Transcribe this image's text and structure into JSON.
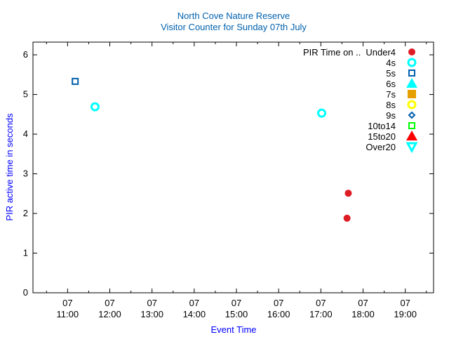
{
  "chart_data": {
    "type": "scatter",
    "title": "North Cove Nature Reserve",
    "subtitle": "Visitor Counter for Sunday 07th July",
    "xlabel": "Event Time",
    "ylabel": "PIR active time in seconds",
    "xlim_hours": [
      10.18,
      19.67
    ],
    "ylim": [
      0,
      6.32
    ],
    "yticks": [
      "0",
      "1",
      "2",
      "3",
      "4",
      "5",
      "6"
    ],
    "xticks": [
      {
        "h": 11,
        "day": "07",
        "time": "11:00"
      },
      {
        "h": 12,
        "day": "07",
        "time": "12:00"
      },
      {
        "h": 13,
        "day": "07",
        "time": "13:00"
      },
      {
        "h": 14,
        "day": "07",
        "time": "14:00"
      },
      {
        "h": 15,
        "day": "07",
        "time": "15:00"
      },
      {
        "h": 16,
        "day": "07",
        "time": "16:00"
      },
      {
        "h": 17,
        "day": "07",
        "time": "17:00"
      },
      {
        "h": 18,
        "day": "07",
        "time": "18:00"
      },
      {
        "h": 19,
        "day": "07",
        "time": "19:00"
      }
    ],
    "legend_title": "PIR Time on ..",
    "legend_position": "top-right",
    "series": [
      {
        "name": "Under4",
        "marker": "filled-circle",
        "color": "#dd1c24",
        "points": [
          [
            17.65,
            2.51
          ],
          [
            17.62,
            1.88
          ]
        ]
      },
      {
        "name": "4s",
        "marker": "circle",
        "color": "#00ffff",
        "points": [
          [
            11.65,
            4.69
          ],
          [
            17.02,
            4.53
          ]
        ]
      },
      {
        "name": "5s",
        "marker": "square",
        "color": "#0060ad",
        "points": [
          [
            11.18,
            5.33
          ]
        ]
      },
      {
        "name": "6s",
        "marker": "filled-triangle",
        "color": "#00ffff",
        "points": []
      },
      {
        "name": "7s",
        "marker": "filled-square",
        "color": "#e69f00",
        "points": []
      },
      {
        "name": "8s",
        "marker": "circle",
        "color": "#ffff00",
        "points": []
      },
      {
        "name": "9s",
        "marker": "diamond",
        "color": "#0060ad",
        "points": []
      },
      {
        "name": "10to14",
        "marker": "square",
        "color": "#00ff00",
        "points": []
      },
      {
        "name": "15to20",
        "marker": "filled-triangle",
        "color": "#ff0000",
        "points": []
      },
      {
        "name": "Over20",
        "marker": "triangle-down",
        "color": "#00ffff",
        "points": []
      }
    ]
  }
}
